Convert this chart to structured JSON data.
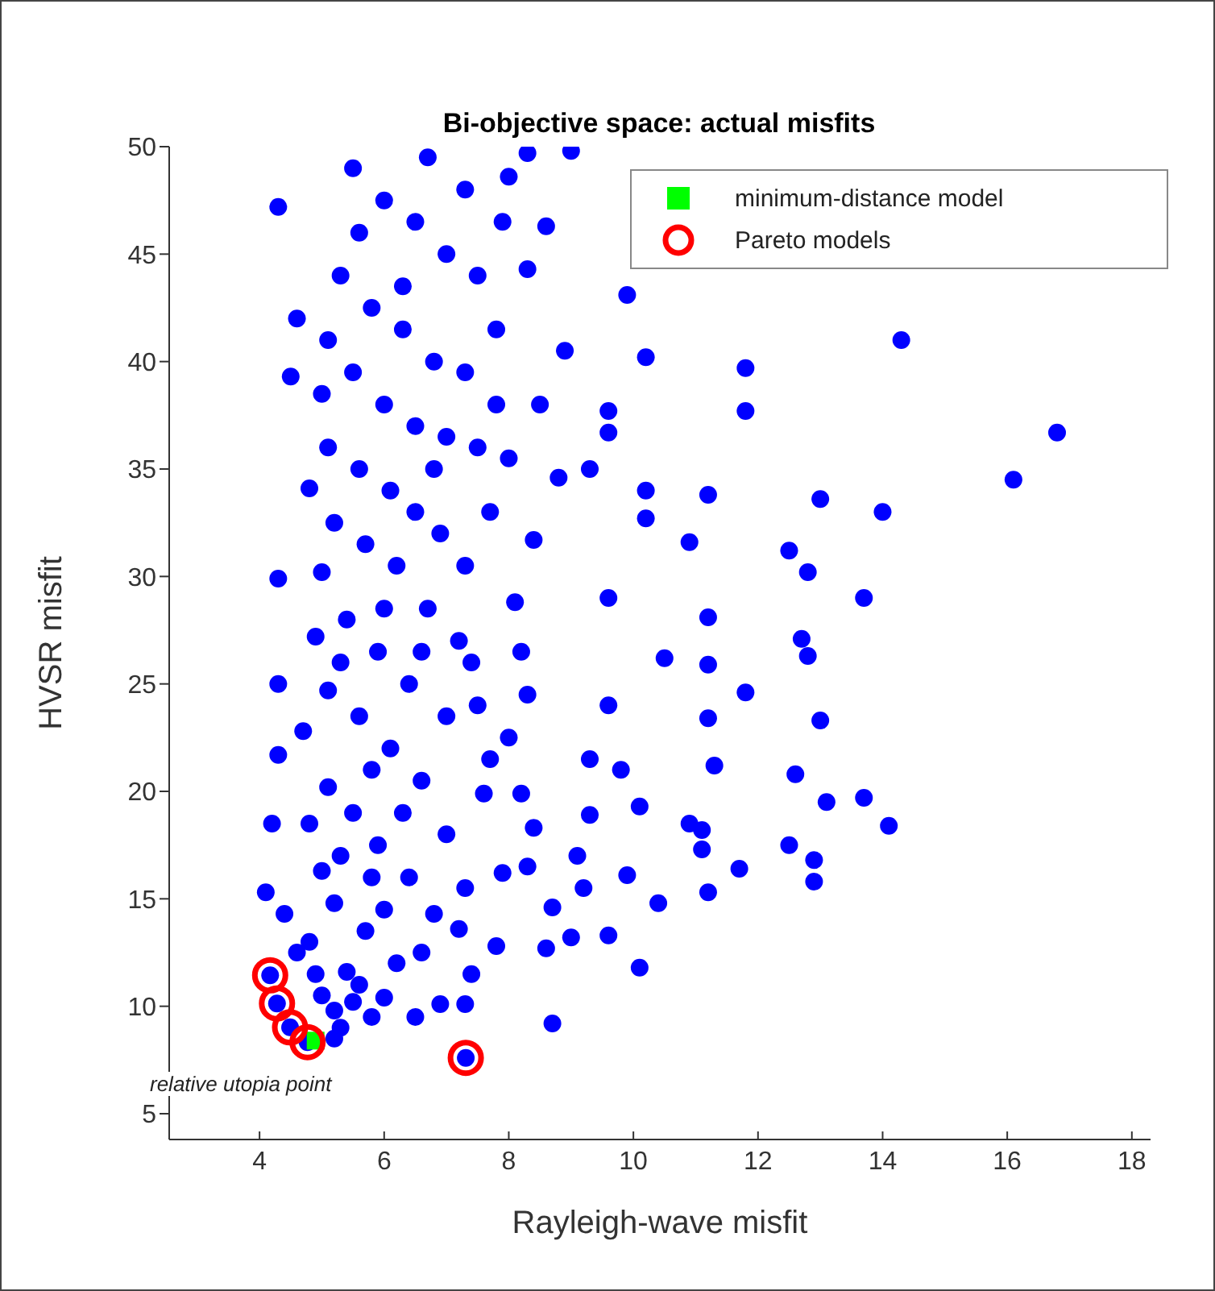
{
  "chart_data": {
    "type": "scatter",
    "title": "Bi-objective space: actual misfits",
    "xlabel": "Rayleigh-wave misfit",
    "ylabel": "HVSR misfit",
    "xlim": [
      2.55,
      18.3
    ],
    "ylim": [
      3.8,
      50
    ],
    "xticks": [
      4,
      6,
      8,
      10,
      12,
      14,
      16,
      18
    ],
    "yticks": [
      5,
      10,
      15,
      20,
      25,
      30,
      35,
      40,
      45,
      50
    ],
    "grid": false,
    "legend": "top right",
    "annotations": [
      "relative utopia point"
    ],
    "series": [
      {
        "color": "#0000ff",
        "marker": "circle",
        "x": [
          16.8,
          16.1,
          14.3,
          14.0,
          14.1,
          13.7,
          13.1,
          12.9,
          12.9,
          12.5,
          12.6,
          13.0,
          12.8,
          12.7,
          12.8,
          12.5,
          13.0,
          13.7,
          11.8,
          11.2,
          11.2,
          11.2,
          11.3,
          11.1,
          11.1,
          11.2,
          11.7,
          10.9,
          10.1,
          10.1,
          10.4,
          9.9,
          9.8,
          10.5,
          10.9,
          11.2,
          11.8,
          11.8,
          9.9,
          10.2,
          9.6,
          9.6,
          9.3,
          10.2,
          10.2,
          9.6,
          9.6,
          9.3,
          9.3,
          9.1,
          9.2,
          9.6,
          9.0,
          8.7,
          8.6,
          8.7,
          8.3,
          8.2,
          8.3,
          8.1,
          8.4,
          8.8,
          8.9,
          8.3,
          8.6,
          9.0,
          8.0,
          7.4,
          7.9,
          7.6,
          7.2,
          7.3,
          4.3,
          4.5,
          4.6,
          4.3,
          4.3,
          4.3,
          4.2,
          4.1,
          4.4,
          4.6,
          4.8,
          4.9,
          5.0,
          5.2,
          5.3,
          5.5,
          5.4,
          5.8,
          6.0,
          6.5,
          6.9,
          6.2,
          5.7,
          5.2,
          5.0,
          4.8,
          5.1,
          5.5,
          5.9,
          6.4,
          6.8,
          7.0,
          6.6,
          6.1,
          5.6,
          5.1,
          4.9,
          5.4,
          5.9,
          6.4,
          7.0,
          7.5,
          7.2,
          6.7,
          6.2,
          5.7,
          5.2,
          4.8,
          5.1,
          5.6,
          6.1,
          6.5,
          6.9,
          7.3,
          7.7,
          7.5,
          7.0,
          6.5,
          6.0,
          5.5,
          5.1,
          5.3,
          5.8,
          6.3,
          6.8,
          7.3,
          7.8,
          7.5,
          7.0,
          6.5,
          6.0,
          5.5,
          5.6,
          6.7,
          7.3,
          7.9,
          8.3,
          6.3,
          5.0,
          6.6,
          6.0,
          5.3,
          5.8,
          6.3,
          5.3,
          6.0,
          6.6,
          5.6,
          5.8,
          7.3,
          7.7,
          7.4,
          4.7,
          5.0,
          6.8,
          7.8,
          8.0,
          8.5,
          8.2,
          8.0,
          8.4,
          7.8,
          4.17,
          4.28,
          4.49,
          4.77,
          7.31,
          5.2
        ],
        "values": [
          36.7,
          34.5,
          41,
          33,
          18.4,
          19.7,
          19.5,
          15.8,
          16.8,
          17.5,
          20.8,
          23.3,
          26.3,
          27.1,
          30.2,
          31.2,
          33.6,
          29,
          24.6,
          28.1,
          25.9,
          23.4,
          21.2,
          18.2,
          17.3,
          15.3,
          16.4,
          18.5,
          11.8,
          19.3,
          14.8,
          16.1,
          21,
          26.2,
          31.6,
          33.8,
          37.7,
          39.7,
          43.1,
          40.2,
          37.7,
          36.7,
          35,
          34,
          32.7,
          29,
          24,
          21.5,
          18.9,
          17,
          15.5,
          13.3,
          13.2,
          9.2,
          12.7,
          14.6,
          16.5,
          19.9,
          24.5,
          28.8,
          31.7,
          34.6,
          40.5,
          44.3,
          46.3,
          49.8,
          48.6,
          11.5,
          16.2,
          19.9,
          13.6,
          10.1,
          47.2,
          39.3,
          42,
          29.9,
          25,
          21.7,
          18.5,
          15.3,
          14.3,
          12.5,
          13,
          11.5,
          10.5,
          9.8,
          9,
          10.2,
          11.6,
          9.5,
          10.4,
          9.5,
          10.1,
          12,
          13.5,
          14.8,
          16.3,
          18.5,
          20.2,
          19,
          17.5,
          16,
          14.3,
          18,
          20.5,
          22,
          23.5,
          24.7,
          27.2,
          28,
          26.5,
          25,
          23.5,
          24,
          27,
          28.5,
          30.5,
          31.5,
          32.5,
          34.1,
          36,
          35,
          34,
          33,
          32,
          30.5,
          33,
          36,
          36.5,
          37,
          38,
          39.5,
          41,
          44,
          42.5,
          41.5,
          40,
          39.5,
          41.5,
          44,
          45,
          46.5,
          47.5,
          49,
          46,
          49.5,
          48,
          46.5,
          49.7,
          43.5,
          38.5,
          26.5,
          28.5,
          26,
          21,
          19,
          17,
          14.5,
          12.5,
          11,
          16,
          15.5,
          21.5,
          26,
          22.8,
          30.2,
          35,
          38,
          35.5,
          38,
          26.5,
          22.5,
          18.3,
          12.8,
          11.44,
          10.13,
          9.02,
          8.33,
          7.6,
          8.5
        ]
      },
      {
        "name": "minimum-distance model",
        "color": "#00ff00",
        "marker": "square",
        "x": [
          4.9
        ],
        "values": [
          8.4
        ]
      },
      {
        "name": "Pareto models",
        "color": "#ff0000",
        "marker": "circle",
        "x": [
          4.17,
          4.28,
          4.49,
          4.77,
          7.31
        ],
        "values": [
          11.44,
          10.13,
          9.02,
          8.33,
          7.6
        ]
      }
    ]
  }
}
